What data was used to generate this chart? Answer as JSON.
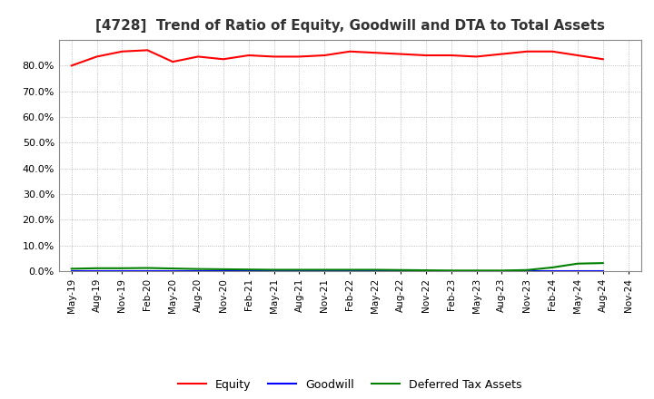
{
  "title": "[4728]  Trend of Ratio of Equity, Goodwill and DTA to Total Assets",
  "x_labels": [
    "May-19",
    "Aug-19",
    "Nov-19",
    "Feb-20",
    "May-20",
    "Aug-20",
    "Nov-20",
    "Feb-21",
    "May-21",
    "Aug-21",
    "Nov-21",
    "Feb-22",
    "May-22",
    "Aug-22",
    "Nov-22",
    "Feb-23",
    "May-23",
    "Aug-23",
    "Nov-23",
    "Feb-24",
    "May-24",
    "Aug-24",
    "Nov-24"
  ],
  "equity": [
    80.0,
    83.5,
    85.5,
    86.0,
    81.5,
    83.5,
    82.5,
    84.0,
    83.5,
    83.5,
    84.0,
    85.5,
    85.0,
    84.5,
    84.0,
    84.0,
    83.5,
    84.5,
    85.5,
    85.5,
    84.0,
    82.5,
    null
  ],
  "goodwill": [
    0.0,
    0.0,
    0.0,
    0.0,
    0.0,
    0.0,
    0.0,
    0.0,
    0.0,
    0.0,
    0.0,
    0.0,
    0.0,
    0.0,
    0.0,
    0.0,
    0.0,
    0.0,
    0.0,
    0.0,
    0.0,
    0.0,
    null
  ],
  "dta": [
    1.0,
    1.2,
    1.2,
    1.3,
    1.1,
    0.9,
    0.8,
    0.7,
    0.6,
    0.6,
    0.6,
    0.6,
    0.6,
    0.5,
    0.4,
    0.3,
    0.3,
    0.3,
    0.5,
    1.5,
    3.0,
    3.2,
    null
  ],
  "equity_color": "#FF0000",
  "goodwill_color": "#0000FF",
  "dta_color": "#008000",
  "ylim_min": 0,
  "ylim_max": 90,
  "yticks": [
    0,
    10,
    20,
    30,
    40,
    50,
    60,
    70,
    80
  ],
  "background_color": "#FFFFFF",
  "plot_bg_color": "#FFFFFF",
  "grid_color": "#AAAAAA",
  "title_fontsize": 11,
  "legend_labels": [
    "Equity",
    "Goodwill",
    "Deferred Tax Assets"
  ]
}
